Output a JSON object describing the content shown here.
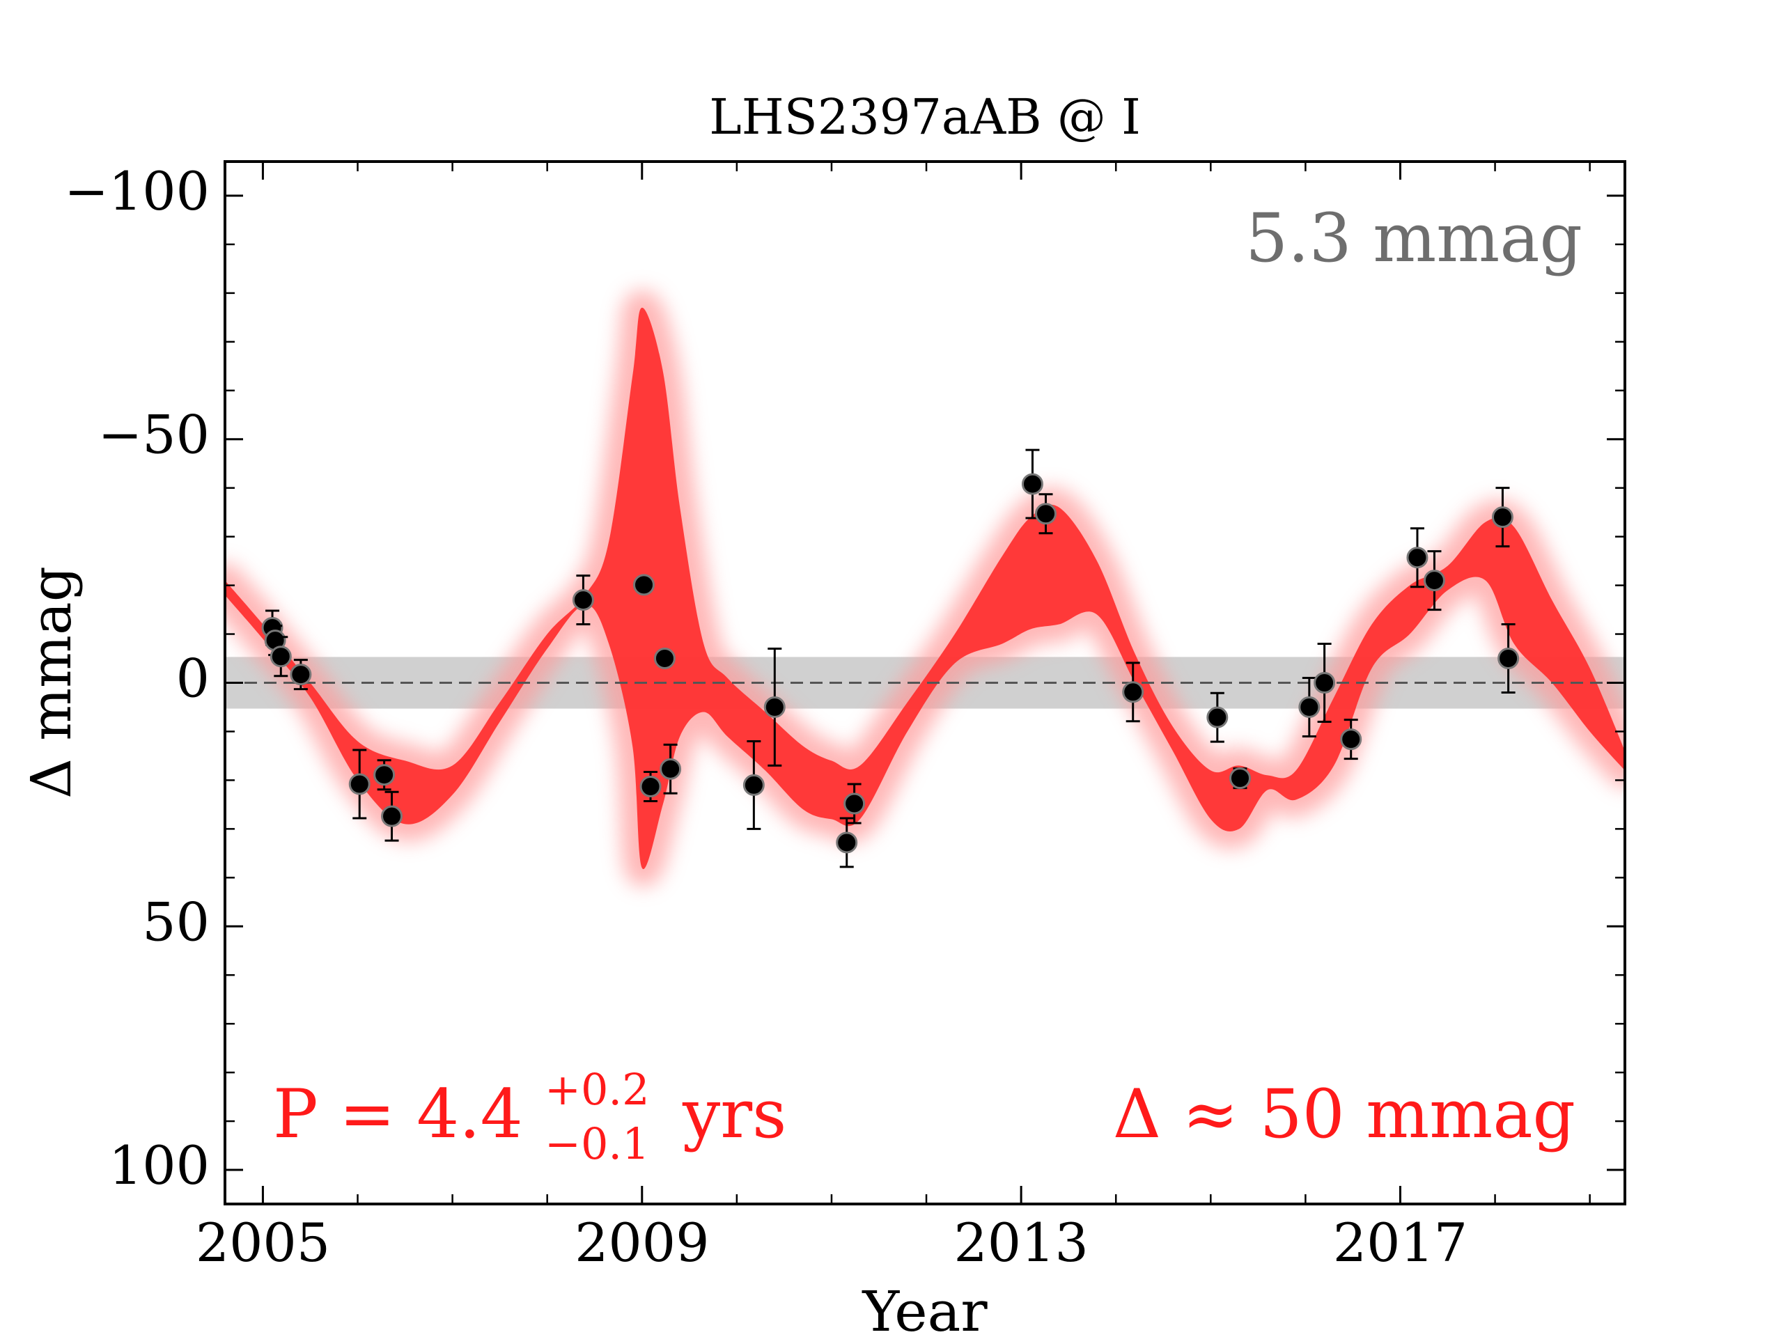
{
  "chart_data": {
    "type": "scatter",
    "title": "LHS2397aAB @ I",
    "xlabel": "Year",
    "ylabel": "Δ  mmag",
    "xlim": [
      2004.6,
      2019.37
    ],
    "ylim": [
      -107,
      107
    ],
    "y_inverted": true,
    "xticks": [
      2005,
      2009,
      2013,
      2017
    ],
    "xminor_ticks": [
      2005,
      2006,
      2007,
      2008,
      2009,
      2010,
      2011,
      2012,
      2013,
      2014,
      2015,
      2016,
      2017,
      2018,
      2019
    ],
    "yticks": [
      {
        "value": -100,
        "label": "−100"
      },
      {
        "value": -50,
        "label": "−50"
      },
      0,
      50,
      100
    ],
    "yminor_ticks": [
      -100,
      -90,
      -80,
      -70,
      -60,
      -50,
      -40,
      -30,
      -20,
      -10,
      0,
      10,
      20,
      30,
      40,
      50,
      60,
      70,
      80,
      90,
      100
    ],
    "noise": 5.3,
    "noise_label": "5.3 mmag",
    "period_text": "P = 4.4",
    "period_plus": "+0.2",
    "period_minus": "−0.1",
    "period_unit": "yrs",
    "amplitude_text": "Δ ≈ 50 mmag",
    "band": {
      "color": "#ff2b2b",
      "x": [
        2004.6,
        2005.0,
        2005.5,
        2006.0,
        2006.5,
        2007.0,
        2007.5,
        2008.0,
        2008.4,
        2008.65,
        2008.9,
        2009.0,
        2009.22,
        2009.4,
        2009.65,
        2009.9,
        2010.3,
        2010.7,
        2011.0,
        2011.3,
        2011.8,
        2012.3,
        2012.8,
        2013.1,
        2013.4,
        2013.8,
        2014.2,
        2014.6,
        2015.0,
        2015.3,
        2015.6,
        2015.9,
        2016.3,
        2016.7,
        2017.1,
        2017.5,
        2017.9,
        2018.2,
        2018.6,
        2019.0,
        2019.37
      ],
      "lower": [
        -21,
        -12,
        0,
        12,
        16,
        17,
        4,
        -10,
        -18,
        -29,
        -63,
        -77,
        -64,
        -36,
        -8,
        -1,
        6,
        13,
        16,
        17,
        4,
        -10,
        -26,
        -34,
        -36,
        -25,
        -6,
        9,
        18,
        17,
        19,
        18,
        3,
        -12,
        -20,
        -24,
        -33,
        -32,
        -17,
        -3,
        14
      ],
      "upper": [
        -18,
        -9,
        3,
        20,
        29,
        23,
        8,
        -7,
        -16,
        -8,
        13,
        38,
        25,
        11,
        6,
        11,
        18,
        26,
        28,
        28,
        10,
        -4,
        -8,
        -11,
        -12,
        -14,
        0,
        14,
        28,
        30,
        22,
        24,
        17,
        -3,
        -10,
        -19,
        -21,
        -8,
        0,
        10,
        18
      ]
    },
    "series": [
      {
        "color": "#000000",
        "x": [
          2005.1,
          2005.13,
          2005.19,
          2005.4,
          2006.02,
          2006.28,
          2006.36,
          2008.38,
          2009.02,
          2009.09,
          2009.24,
          2009.3,
          2010.18,
          2010.4,
          2011.16,
          2011.24,
          2013.12,
          2013.26,
          2014.18,
          2015.07,
          2015.31,
          2016.04,
          2016.2,
          2016.48,
          2017.18,
          2017.36,
          2018.08,
          2018.14
        ],
        "values": [
          -11.3,
          -8.7,
          -5.4,
          -1.7,
          20.8,
          18.9,
          27.4,
          -17.0,
          -20.1,
          21.3,
          -5.0,
          17.7,
          21.0,
          5.0,
          32.8,
          24.8,
          -40.8,
          -34.7,
          1.9,
          7.1,
          19.6,
          5.0,
          0.0,
          11.6,
          -25.7,
          -21.0,
          -34.0,
          -5.0
        ],
        "errors": [
          3.5,
          3,
          4,
          3,
          7,
          3,
          5,
          5,
          1,
          3,
          1,
          5,
          9,
          12,
          5,
          4,
          7,
          4,
          6,
          5,
          2,
          6,
          8,
          4,
          6,
          6,
          6,
          7
        ]
      }
    ]
  }
}
